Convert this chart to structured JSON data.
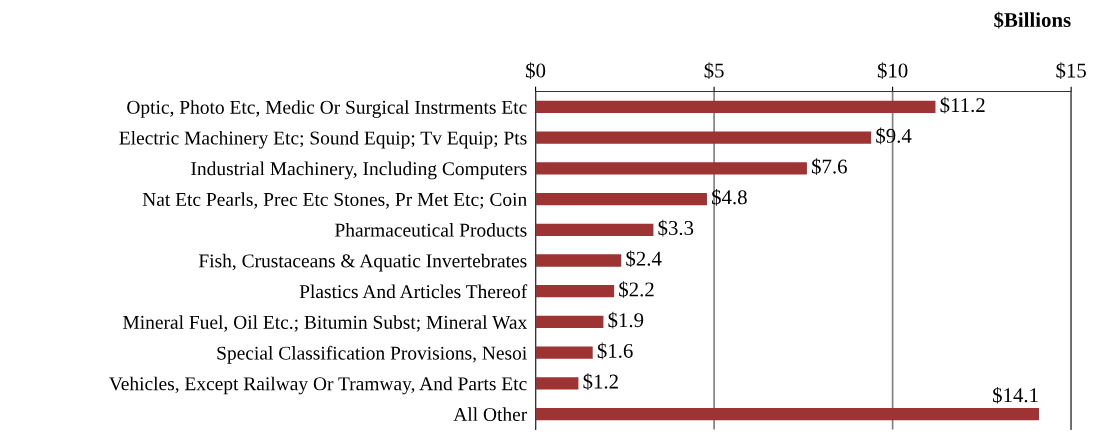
{
  "chart_data": {
    "type": "bar",
    "orientation": "horizontal",
    "xlabel": "$Billions",
    "categories": [
      "Optic, Photo Etc, Medic Or Surgical Instrments Etc",
      "Electric Machinery Etc; Sound Equip; Tv Equip; Pts",
      "Industrial Machinery, Including Computers",
      "Nat Etc Pearls, Prec Etc Stones, Pr Met Etc; Coin",
      "Pharmaceutical Products",
      "Fish, Crustaceans & Aquatic Invertebrates",
      "Plastics And Articles Thereof",
      "Mineral Fuel, Oil Etc.; Bitumin Subst; Mineral Wax",
      "Special Classification Provisions, Nesoi",
      "Vehicles, Except Railway Or Tramway, And Parts Etc",
      "All Other"
    ],
    "values": [
      11.2,
      9.4,
      7.6,
      4.8,
      3.3,
      2.4,
      2.2,
      1.9,
      1.6,
      1.2,
      14.1
    ],
    "value_labels": [
      "$11.2",
      "$9.4",
      "$7.6",
      "$4.8",
      "$3.3",
      "$2.4",
      "$2.2",
      "$1.9",
      "$1.6",
      "$1.2",
      "$14.1"
    ],
    "color": "#9e3333",
    "xlim": [
      0,
      15
    ],
    "xticks": [
      {
        "value": 0,
        "label": "$0"
      },
      {
        "value": 5,
        "label": "$5"
      },
      {
        "value": 10,
        "label": "$10"
      },
      {
        "value": 15,
        "label": "$15"
      }
    ],
    "grid": "x",
    "legend": false
  }
}
